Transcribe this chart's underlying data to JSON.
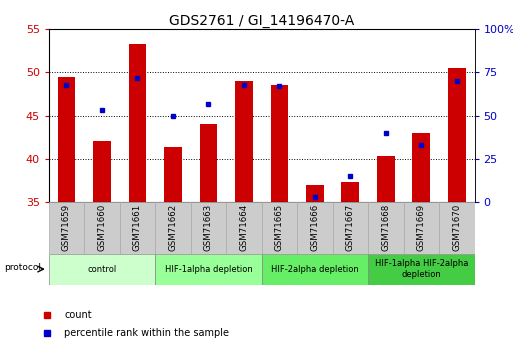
{
  "title": "GDS2761 / GI_14196470-A",
  "samples": [
    "GSM71659",
    "GSM71660",
    "GSM71661",
    "GSM71662",
    "GSM71663",
    "GSM71664",
    "GSM71665",
    "GSM71666",
    "GSM71667",
    "GSM71668",
    "GSM71669",
    "GSM71670"
  ],
  "count_values": [
    49.5,
    42.0,
    53.3,
    41.3,
    44.0,
    49.0,
    48.5,
    37.0,
    37.3,
    40.3,
    43.0,
    50.5
  ],
  "percentile_values": [
    68,
    53,
    72,
    50,
    57,
    68,
    67,
    3,
    15,
    40,
    33,
    70
  ],
  "ylim_left": [
    35,
    55
  ],
  "ylim_right": [
    0,
    100
  ],
  "yticks_left": [
    35,
    40,
    45,
    50,
    55
  ],
  "yticks_right": [
    0,
    25,
    50,
    75,
    100
  ],
  "ytick_labels_right": [
    "0",
    "25",
    "50",
    "75",
    "100%"
  ],
  "bar_color": "#cc0000",
  "percentile_color": "#0000cc",
  "bar_width": 0.5,
  "protocol_groups": [
    {
      "label": "control",
      "start": 0,
      "end": 2,
      "color": "#ccffcc"
    },
    {
      "label": "HIF-1alpha depletion",
      "start": 3,
      "end": 5,
      "color": "#99ff99"
    },
    {
      "label": "HIF-2alpha depletion",
      "start": 6,
      "end": 8,
      "color": "#66ee66"
    },
    {
      "label": "HIF-1alpha HIF-2alpha\ndepletion",
      "start": 9,
      "end": 11,
      "color": "#44cc44"
    }
  ],
  "legend_items": [
    {
      "label": "count",
      "color": "#cc0000"
    },
    {
      "label": "percentile rank within the sample",
      "color": "#0000cc"
    }
  ],
  "tick_color_left": "#cc0000",
  "tick_color_right": "#0000cc",
  "title_fontsize": 10,
  "tick_fontsize": 8,
  "sample_bg_color": "#cccccc",
  "sample_border_color": "#aaaaaa"
}
